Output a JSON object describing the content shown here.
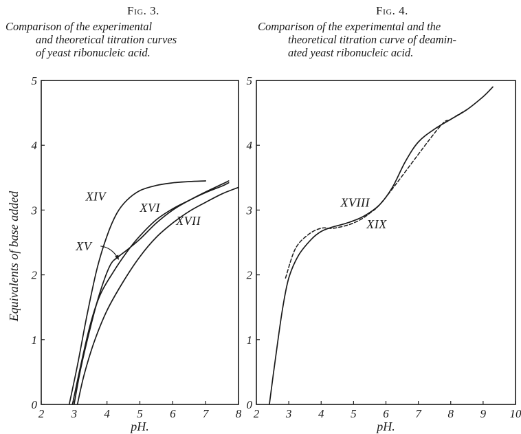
{
  "figures": [
    {
      "fig_label": "Fig. 3.",
      "caption_lines": [
        "Comparison of the experimental",
        "and theoretical titration curves",
        "of yeast ribonucleic acid."
      ]
    },
    {
      "fig_label": "Fig. 4.",
      "caption_lines": [
        "Comparison of the experimental and the",
        "theoretical titration curve of deamin-",
        "ated yeast ribonucleic acid."
      ]
    }
  ],
  "chart_data": [
    {
      "type": "line",
      "title": "Fig. 3.",
      "xlabel": "pH.",
      "ylabel": "Equivalents of base added",
      "xlim": [
        2,
        8
      ],
      "ylim": [
        0,
        5
      ],
      "x_ticks": [
        2,
        3,
        4,
        5,
        6,
        7,
        8
      ],
      "y_ticks": [
        0,
        1,
        2,
        3,
        4,
        5
      ],
      "grid": false,
      "series": [
        {
          "name": "XIV",
          "style": "solid",
          "points": [
            [
              2.85,
              0
            ],
            [
              3.1,
              0.6
            ],
            [
              3.4,
              1.4
            ],
            [
              3.7,
              2.1
            ],
            [
              4.0,
              2.6
            ],
            [
              4.3,
              2.95
            ],
            [
              4.6,
              3.15
            ],
            [
              5.0,
              3.3
            ],
            [
              5.5,
              3.38
            ],
            [
              6.0,
              3.42
            ],
            [
              6.5,
              3.44
            ],
            [
              7.0,
              3.45
            ]
          ]
        },
        {
          "name": "XV",
          "style": "solid",
          "points": [
            [
              3.0,
              0
            ],
            [
              3.2,
              0.55
            ],
            [
              3.5,
              1.2
            ],
            [
              3.8,
              1.75
            ],
            [
              4.1,
              2.15
            ],
            [
              4.35,
              2.28
            ],
            [
              4.6,
              2.38
            ],
            [
              5.0,
              2.55
            ],
            [
              5.5,
              2.8
            ],
            [
              6.0,
              3.0
            ],
            [
              6.5,
              3.15
            ],
            [
              7.0,
              3.28
            ],
            [
              7.5,
              3.4
            ],
            [
              7.7,
              3.45
            ]
          ]
        },
        {
          "name": "XVI",
          "style": "solid",
          "points": [
            [
              2.95,
              0
            ],
            [
              3.2,
              0.6
            ],
            [
              3.5,
              1.25
            ],
            [
              3.8,
              1.7
            ],
            [
              4.2,
              2.05
            ],
            [
              4.6,
              2.35
            ],
            [
              5.0,
              2.6
            ],
            [
              5.5,
              2.85
            ],
            [
              6.0,
              3.02
            ],
            [
              6.5,
              3.15
            ],
            [
              7.0,
              3.27
            ],
            [
              7.5,
              3.37
            ],
            [
              7.7,
              3.42
            ]
          ]
        },
        {
          "name": "XVII",
          "style": "solid",
          "points": [
            [
              3.1,
              0
            ],
            [
              3.3,
              0.45
            ],
            [
              3.6,
              0.95
            ],
            [
              4.0,
              1.45
            ],
            [
              4.5,
              1.9
            ],
            [
              5.0,
              2.28
            ],
            [
              5.5,
              2.58
            ],
            [
              6.0,
              2.8
            ],
            [
              6.5,
              2.98
            ],
            [
              7.0,
              3.12
            ],
            [
              7.5,
              3.25
            ],
            [
              8.0,
              3.35
            ]
          ]
        }
      ],
      "annotations": [
        {
          "text": "XIV",
          "x": 3.35,
          "y": 3.15
        },
        {
          "text": "XVI",
          "x": 5.0,
          "y": 2.97
        },
        {
          "text": "XVII",
          "x": 6.1,
          "y": 2.77
        },
        {
          "text": "XV",
          "x": 3.05,
          "y": 2.38,
          "arrow_to": [
            4.35,
            2.24
          ]
        }
      ]
    },
    {
      "type": "line",
      "title": "Fig. 4.",
      "xlabel": "pH.",
      "ylabel": "",
      "xlim": [
        2,
        10
      ],
      "ylim": [
        0,
        5
      ],
      "x_ticks": [
        2,
        3,
        4,
        5,
        6,
        7,
        8,
        9,
        10
      ],
      "y_ticks": [
        0,
        1,
        2,
        3,
        4,
        5
      ],
      "grid": false,
      "series": [
        {
          "name": "XVIII",
          "style": "solid",
          "points": [
            [
              2.4,
              0
            ],
            [
              2.6,
              0.75
            ],
            [
              2.8,
              1.45
            ],
            [
              3.0,
              1.95
            ],
            [
              3.3,
              2.3
            ],
            [
              3.7,
              2.55
            ],
            [
              4.0,
              2.67
            ],
            [
              4.3,
              2.73
            ],
            [
              4.8,
              2.8
            ],
            [
              5.3,
              2.9
            ],
            [
              5.8,
              3.08
            ],
            [
              6.2,
              3.35
            ],
            [
              6.6,
              3.75
            ],
            [
              7.0,
              4.05
            ],
            [
              7.5,
              4.25
            ],
            [
              8.0,
              4.4
            ],
            [
              8.5,
              4.55
            ],
            [
              9.0,
              4.75
            ],
            [
              9.3,
              4.9
            ]
          ]
        },
        {
          "name": "XIX",
          "style": "dashed",
          "points": [
            [
              2.9,
              1.95
            ],
            [
              3.2,
              2.4
            ],
            [
              3.6,
              2.62
            ],
            [
              4.0,
              2.72
            ],
            [
              4.4,
              2.72
            ],
            [
              5.0,
              2.8
            ],
            [
              5.5,
              2.95
            ],
            [
              6.0,
              3.2
            ],
            [
              7.6,
              4.25
            ],
            [
              8.0,
              4.4
            ],
            [
              8.5,
              4.55
            ]
          ]
        }
      ],
      "annotations": [
        {
          "text": "XVIII",
          "x": 4.6,
          "y": 3.05
        },
        {
          "text": "XIX",
          "x": 5.4,
          "y": 2.72
        }
      ]
    }
  ]
}
